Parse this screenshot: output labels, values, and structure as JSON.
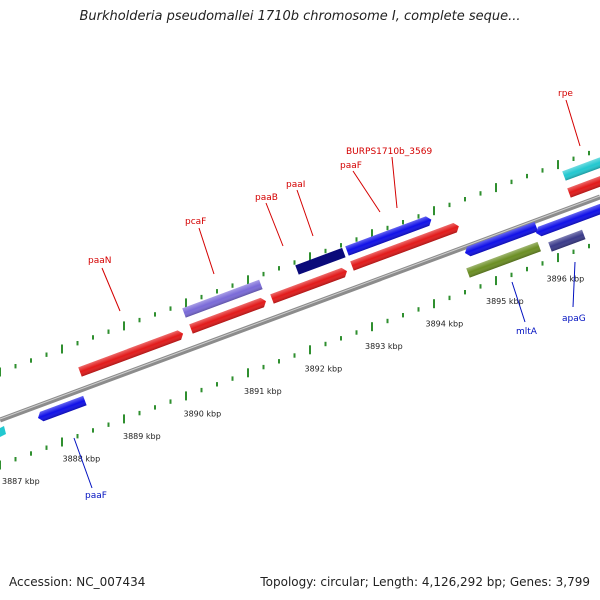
{
  "title": "Burkholderia pseudomallei 1710b chromosome I, complete seque...",
  "footer": {
    "accession": "Accession: NC_007434",
    "summary": "Topology: circular; Length: 4,126,292 bp; Genes: 3,799"
  },
  "colors": {
    "backbone": "#8c8c8c",
    "tick": "#2f8f2f",
    "forward_label": "#d40000",
    "reverse_label": "#0010c0"
  },
  "scale": {
    "unit": "kbp",
    "ticks": [
      {
        "kbp": 3887,
        "label": "3887 kbp"
      },
      {
        "kbp": 3888,
        "label": "3888 kbp"
      },
      {
        "kbp": 3889,
        "label": "3889 kbp"
      },
      {
        "kbp": 3890,
        "label": "3890 kbp"
      },
      {
        "kbp": 3891,
        "label": "3891 kbp"
      },
      {
        "kbp": 3892,
        "label": "3892 kbp"
      },
      {
        "kbp": 3893,
        "label": "3893 kbp"
      },
      {
        "kbp": 3894,
        "label": "3894 kbp"
      },
      {
        "kbp": 3895,
        "label": "3895 kbp"
      },
      {
        "kbp": 3896,
        "label": "3896 kbp"
      }
    ]
  },
  "genes": [
    {
      "label": "paaN",
      "strand": "+",
      "color": "#e21a1a"
    },
    {
      "label": "pcaF",
      "strand": "+",
      "color": "#7a6ad8"
    },
    {
      "label": "paaB",
      "strand": "+",
      "color": "#e21a1a"
    },
    {
      "label": "paaI",
      "strand": "+",
      "color": "#0a0a7a"
    },
    {
      "label": "paaF",
      "strand": "+",
      "color": "#e21a1a"
    },
    {
      "label": "BURPS1710b_3569",
      "strand": "+",
      "color": "#1010e8"
    },
    {
      "label": "rpe",
      "strand": "+",
      "color": "#22c8d0"
    },
    {
      "label": "paaF",
      "strand": "-",
      "color": "#1010e8"
    },
    {
      "label": "mltA",
      "strand": "-",
      "color": "#6b8e23"
    },
    {
      "label": "apaG",
      "strand": "-",
      "color": "#3a3a8a"
    }
  ]
}
